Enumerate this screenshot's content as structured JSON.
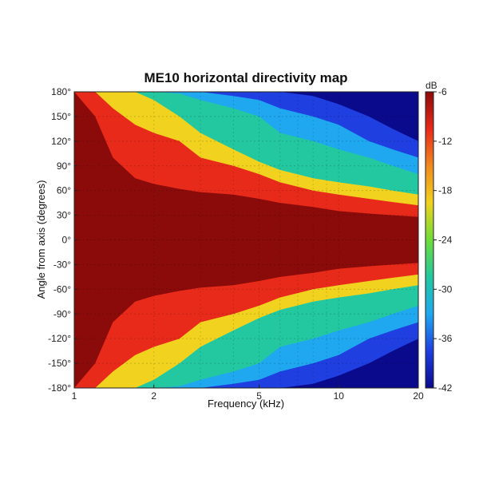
{
  "chart_data": {
    "type": "heatmap",
    "title": "ME10 horizontal directivity map",
    "xlabel": "Frequency (kHz)",
    "ylabel": "Angle from axis (degrees)",
    "x_scale": "log",
    "xlim": [
      1,
      20
    ],
    "ylim": [
      -180,
      180
    ],
    "x_ticks": [
      "1",
      "2",
      "5",
      "10",
      "20"
    ],
    "y_ticks": [
      "180°",
      "150°",
      "120°",
      "90°",
      "60°",
      "30°",
      "0°",
      "-30°",
      "-60°",
      "-90°",
      "-120°",
      "-150°",
      "-180°"
    ],
    "grid": true,
    "colorbar": {
      "unit": "dB",
      "range": [
        -42,
        -6
      ],
      "ticks": [
        "-6",
        "-12",
        "-18",
        "-24",
        "-30",
        "-36",
        "-42"
      ],
      "colors": [
        "#0a0a8c",
        "#1f3fe0",
        "#1fa8f0",
        "#23c8a0",
        "#6fdc3a",
        "#f0d21f",
        "#f08a1f",
        "#e82a1a",
        "#8b0b0b"
      ]
    },
    "contour_levels_db": [
      -6,
      -12,
      -18,
      -24,
      -30,
      -36
    ],
    "contours_angle_deg_vs_freq_khz": {
      "freq_khz": [
        1,
        1.2,
        1.4,
        1.7,
        2,
        2.5,
        3,
        4,
        5,
        6,
        8,
        10,
        13,
        16,
        20
      ],
      "-6": [
        180,
        150,
        100,
        75,
        68,
        62,
        58,
        55,
        50,
        45,
        40,
        35,
        32,
        30,
        28
      ],
      "-12": [
        180,
        180,
        160,
        140,
        130,
        120,
        100,
        90,
        80,
        70,
        60,
        55,
        50,
        46,
        42
      ],
      "-18": [
        180,
        180,
        180,
        180,
        170,
        150,
        130,
        110,
        95,
        85,
        75,
        70,
        65,
        60,
        55
      ],
      "-24": [
        180,
        180,
        180,
        180,
        180,
        178,
        170,
        160,
        150,
        130,
        120,
        110,
        100,
        90,
        80
      ],
      "-30": [
        180,
        180,
        180,
        180,
        180,
        180,
        180,
        175,
        170,
        160,
        150,
        140,
        120,
        110,
        100
      ],
      "-36": [
        180,
        180,
        180,
        180,
        180,
        180,
        180,
        180,
        180,
        180,
        175,
        165,
        150,
        135,
        120
      ]
    }
  }
}
